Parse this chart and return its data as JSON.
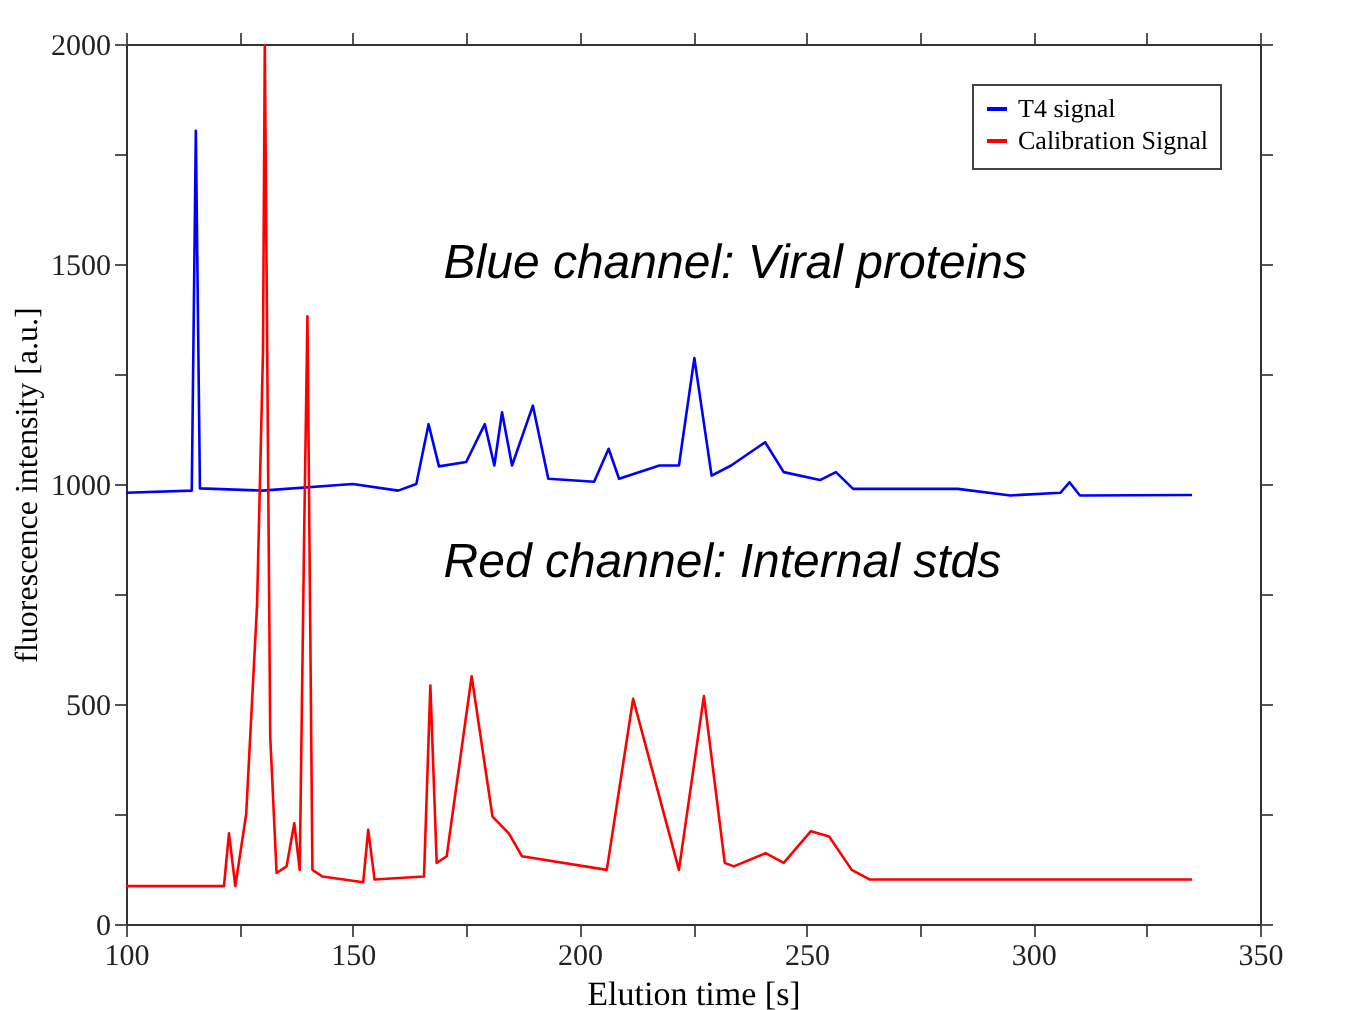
{
  "chart_data": {
    "type": "line",
    "xlabel": "Elution time [s]",
    "ylabel": "fluorescence intensity [a.u.]",
    "xlim": [
      100,
      350
    ],
    "ylim": [
      0,
      2000
    ],
    "xticks": [
      100,
      {
        "value": 125,
        "label": null
      },
      150,
      {
        "value": 175,
        "label": null
      },
      200,
      {
        "value": 225,
        "label": null
      },
      250,
      {
        "value": 275,
        "label": null
      },
      300,
      {
        "value": 325,
        "label": null
      },
      350
    ],
    "yticks": [
      0,
      {
        "value": 250,
        "label": null
      },
      500,
      {
        "value": 750,
        "label": null
      },
      1000,
      {
        "value": 1250,
        "label": null
      },
      1500,
      {
        "value": 1750,
        "label": null
      },
      2000
    ],
    "grid": false,
    "legend": "top right",
    "marker": "none",
    "line_style": "solid",
    "annotations": [
      "Blue channel:  Viral proteins",
      "Red channel:  Internal stds"
    ],
    "series": [
      {
        "name": "T4 signal",
        "color": "#0000ff",
        "x": [
          100,
          114.5,
          115.4,
          116.3,
          130,
          150,
          160,
          164,
          166.7,
          169,
          175,
          179.1,
          181.2,
          182.9,
          185.1,
          189.7,
          193.1,
          203.2,
          206.4,
          208.7,
          217.6,
          221.9,
          225.3,
          229.1,
          233.4,
          240.9,
          245,
          253,
          256.5,
          260.3,
          283.4,
          295,
          306,
          308,
          310.3,
          335
        ],
        "values": [
          980,
          985,
          1803,
          990,
          985,
          1000,
          985,
          1000,
          1136,
          1040,
          1050,
          1136,
          1042,
          1163,
          1042,
          1178,
          1012,
          1005,
          1080,
          1012,
          1042,
          1042,
          1286,
          1019,
          1042,
          1095,
          1027,
          1009,
          1027,
          989,
          989,
          974,
          980,
          1004,
          974,
          975
        ]
      },
      {
        "name": "Calibration Signal",
        "color": "#ff0000",
        "x": [
          100,
          121.6,
          122.7,
          124.1,
          126.5,
          128.9,
          130.2,
          130.6,
          131.8,
          133.2,
          135.4,
          137.1,
          138.3,
          139.3,
          140,
          141.1,
          143.3,
          152.3,
          153.4,
          154.8,
          165.7,
          167.1,
          168.5,
          170.7,
          176.2,
          180.8,
          184.4,
          187.3,
          206,
          211.8,
          221.9,
          227.4,
          232,
          234,
          241,
          245,
          251,
          255,
          260,
          264,
          335
        ],
        "values": [
          86,
          86,
          206,
          86,
          250,
          726,
          1300,
          2000,
          425,
          116,
          131,
          229,
          123,
          900,
          1381,
          123,
          108,
          95,
          214,
          101,
          108,
          542,
          139,
          154,
          563,
          244,
          206,
          154,
          123,
          512,
          123,
          518,
          139,
          131,
          161,
          139,
          211,
          199,
          123,
          101,
          101
        ]
      }
    ]
  }
}
